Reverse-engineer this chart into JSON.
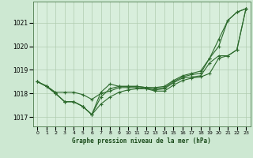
{
  "bg_color": "#cde8d2",
  "plot_bg_color": "#d8eedc",
  "grid_color": "#b0ccb0",
  "line_color": "#2d6a2d",
  "title": "Graphe pression niveau de la mer (hPa)",
  "xlabel_ticks": [
    "0",
    "1",
    "2",
    "3",
    "4",
    "5",
    "6",
    "7",
    "8",
    "9",
    "10",
    "11",
    "12",
    "13",
    "14",
    "15",
    "16",
    "17",
    "18",
    "19",
    "20",
    "21",
    "22",
    "23"
  ],
  "ylim": [
    1016.6,
    1021.9
  ],
  "yticks": [
    1017,
    1018,
    1019,
    1020,
    1021
  ],
  "series": [
    [
      1018.5,
      1018.3,
      1018.0,
      1017.65,
      1017.65,
      1017.45,
      1017.1,
      1017.55,
      1017.85,
      1018.05,
      1018.15,
      1018.2,
      1018.2,
      1018.1,
      1018.1,
      1018.35,
      1018.55,
      1018.65,
      1018.7,
      1018.85,
      1019.5,
      1019.6,
      1019.85,
      1021.6
    ],
    [
      1018.5,
      1018.3,
      1018.0,
      1017.65,
      1017.65,
      1017.45,
      1017.1,
      1018.05,
      1018.4,
      1018.3,
      1018.3,
      1018.3,
      1018.25,
      1018.25,
      1018.3,
      1018.55,
      1018.75,
      1018.85,
      1018.95,
      1019.5,
      1020.0,
      1021.1,
      1021.45,
      1021.6
    ],
    [
      1018.5,
      1018.32,
      1018.05,
      1018.05,
      1018.05,
      1017.95,
      1017.75,
      1018.0,
      1018.1,
      1018.25,
      1018.25,
      1018.25,
      1018.2,
      1018.15,
      1018.2,
      1018.45,
      1018.65,
      1018.7,
      1018.75,
      1019.3,
      1019.6,
      1019.6,
      1019.85,
      1021.6
    ],
    [
      1018.5,
      1018.3,
      1018.0,
      1017.65,
      1017.65,
      1017.45,
      1017.1,
      1017.85,
      1018.2,
      1018.3,
      1018.3,
      1018.3,
      1018.25,
      1018.2,
      1018.25,
      1018.5,
      1018.7,
      1018.8,
      1018.85,
      1019.5,
      1020.3,
      1021.1,
      1021.45,
      1021.6
    ]
  ]
}
